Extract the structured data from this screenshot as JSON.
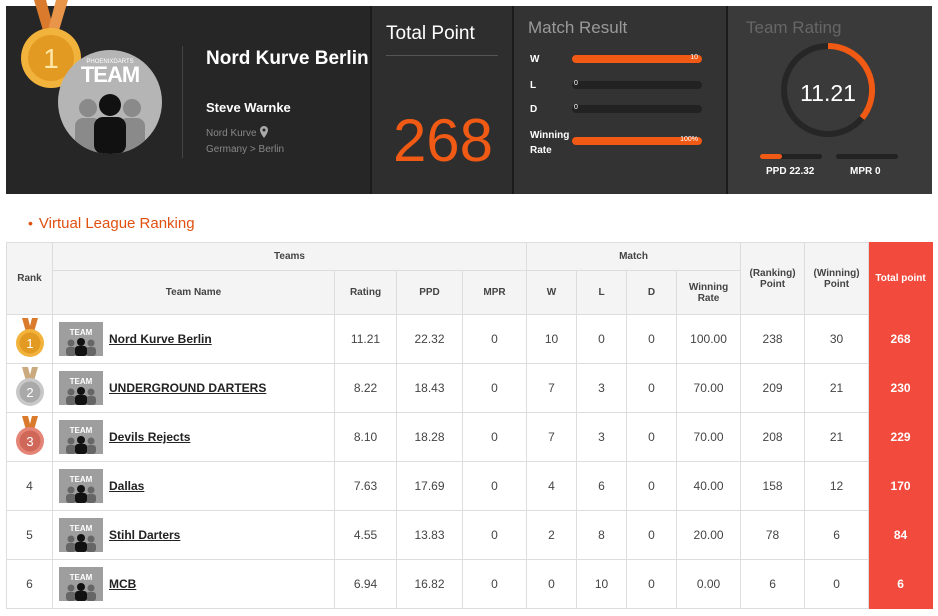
{
  "profile": {
    "team_name": "Nord Kurve Berlin",
    "avatar_label": "TEAM",
    "avatar_small": "PHOENIXDARTS",
    "player": "Steve Warnke",
    "shop": "Nord Kurve",
    "region": "Germany > Berlin",
    "medal_rank": "1"
  },
  "total": {
    "label": "Total Point",
    "value": "268"
  },
  "match_result": {
    "title": "Match Result",
    "rows": [
      {
        "label": "W",
        "value": "10",
        "fill": 1.0
      },
      {
        "label": "L",
        "value": "0",
        "fill": 0
      },
      {
        "label": "D",
        "value": "0",
        "fill": 0
      },
      {
        "label": "Winning Rate",
        "value": "100%",
        "fill": 1.0
      }
    ]
  },
  "team_rating": {
    "title": "Team Rating",
    "value": "11.21",
    "ppd_label": "PPD 22.32",
    "mpr_label": "MPR 0",
    "ppd_fill": 0.35,
    "mpr_fill": 0
  },
  "section_title": "Virtual League Ranking",
  "table": {
    "headers": {
      "rank": "Rank",
      "teams": "Teams",
      "match": "Match",
      "team_name": "Team Name",
      "rating": "Rating",
      "ppd": "PPD",
      "mpr": "MPR",
      "w": "W",
      "l": "L",
      "d": "D",
      "winning_rate": "Winning Rate",
      "ranking_point": "(Ranking) Point",
      "winning_point": "(Winning) Point",
      "total_point": "Total point"
    },
    "rows": [
      {
        "rank": "1",
        "name": "Nord Kurve Berlin",
        "rating": "11.21",
        "ppd": "22.32",
        "mpr": "0",
        "w": "10",
        "l": "0",
        "d": "0",
        "rate": "100.00",
        "rp": "238",
        "wp": "30",
        "tp": "268"
      },
      {
        "rank": "2",
        "name": "UNDERGROUND DARTERS",
        "rating": "8.22",
        "ppd": "18.43",
        "mpr": "0",
        "w": "7",
        "l": "3",
        "d": "0",
        "rate": "70.00",
        "rp": "209",
        "wp": "21",
        "tp": "230"
      },
      {
        "rank": "3",
        "name": "Devils Rejects",
        "rating": "8.10",
        "ppd": "18.28",
        "mpr": "0",
        "w": "7",
        "l": "3",
        "d": "0",
        "rate": "70.00",
        "rp": "208",
        "wp": "21",
        "tp": "229"
      },
      {
        "rank": "4",
        "name": "Dallas",
        "rating": "7.63",
        "ppd": "17.69",
        "mpr": "0",
        "w": "4",
        "l": "6",
        "d": "0",
        "rate": "40.00",
        "rp": "158",
        "wp": "12",
        "tp": "170"
      },
      {
        "rank": "5",
        "name": "Stihl Darters",
        "rating": "4.55",
        "ppd": "13.83",
        "mpr": "0",
        "w": "2",
        "l": "8",
        "d": "0",
        "rate": "20.00",
        "rp": "78",
        "wp": "6",
        "tp": "84"
      },
      {
        "rank": "6",
        "name": "MCB",
        "rating": "6.94",
        "ppd": "16.82",
        "mpr": "0",
        "w": "0",
        "l": "10",
        "d": "0",
        "rate": "0.00",
        "rp": "6",
        "wp": "0",
        "tp": "6"
      }
    ],
    "thumb_label": "TEAM"
  },
  "colors": {
    "accent": "#f05a14",
    "total_col": "#f24a3c",
    "gold": "#e8a324",
    "silver": "#a9a9a9",
    "bronze": "#d0685a"
  }
}
